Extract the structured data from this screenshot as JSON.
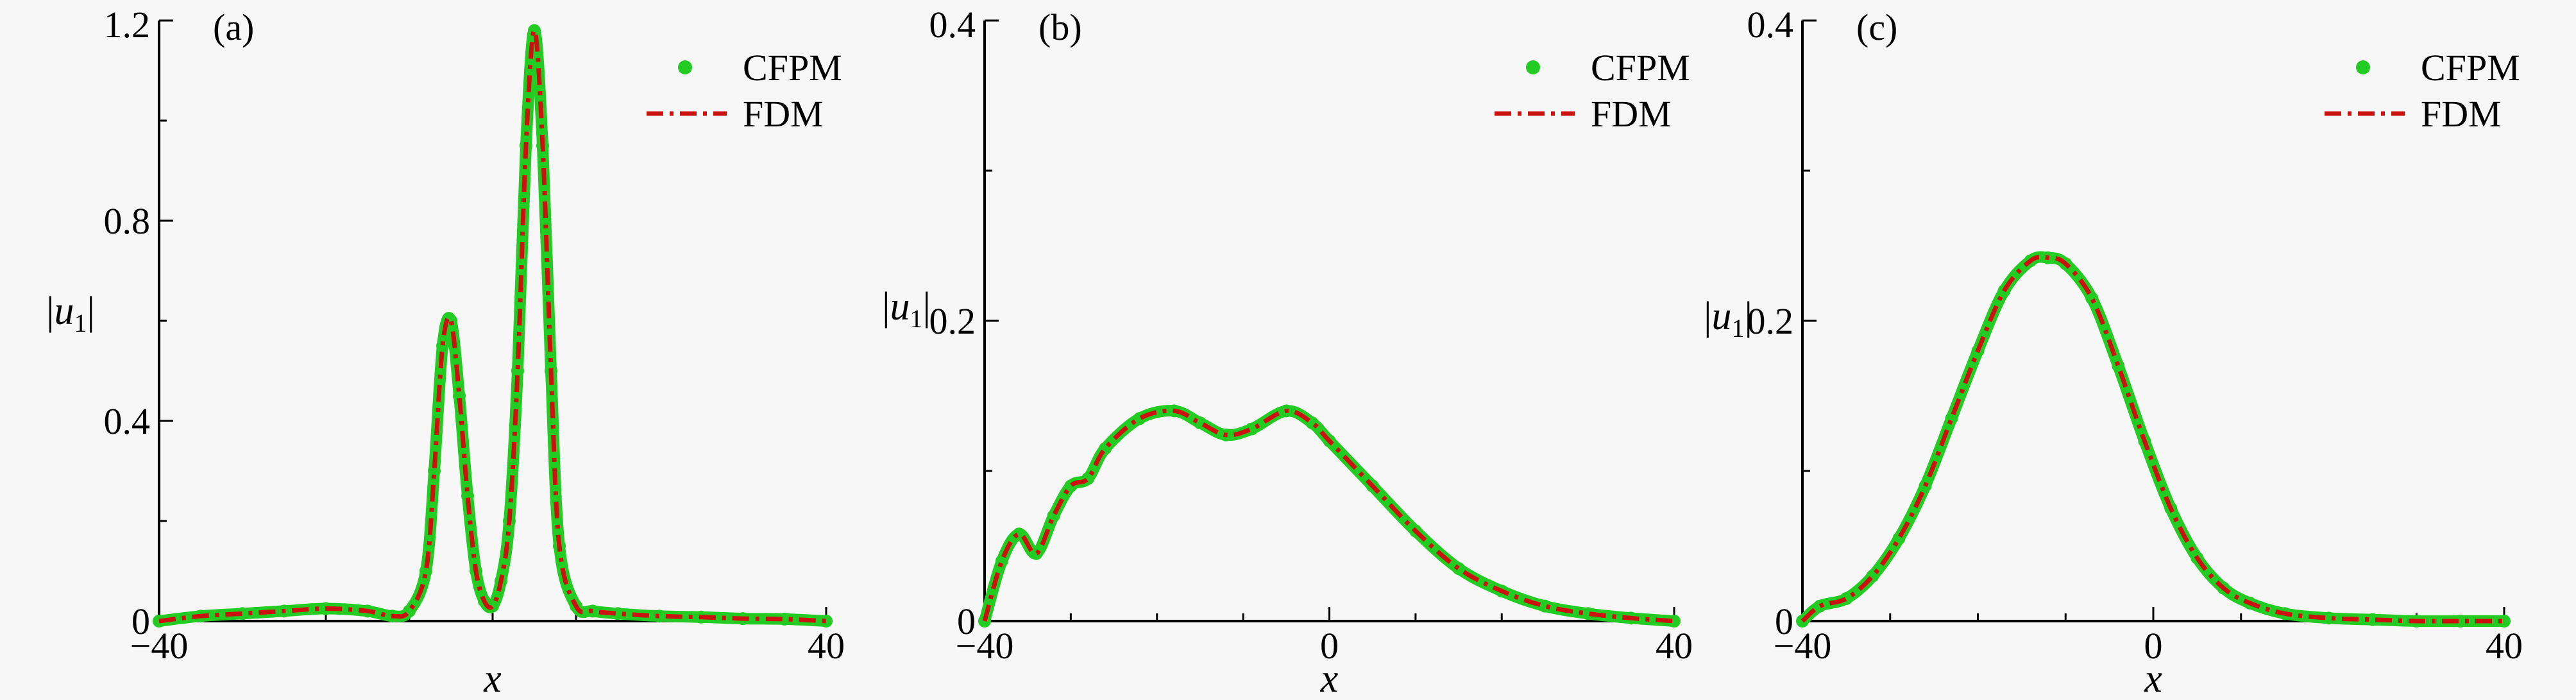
{
  "chart_data": [
    {
      "type": "line",
      "panel_label": "(a)",
      "xlabel": "x",
      "ylabel": "|u1|",
      "xlim": [
        -40,
        40
      ],
      "ylim": [
        0,
        1.2
      ],
      "xticks": [
        -40,
        40
      ],
      "xtick_labels": [
        "−40",
        "40"
      ],
      "yticks": [
        0,
        0.4,
        0.8,
        1.2
      ],
      "ytick_labels": [
        "0",
        "0.4",
        "0.8",
        "1.2"
      ],
      "legend": "top-right",
      "series": [
        {
          "name": "CFPM",
          "style": "markers",
          "color": "#22cc22",
          "x": [
            -40,
            -35,
            -30,
            -25,
            -20,
            -15,
            -12,
            -10,
            -8,
            -7,
            -6,
            -5,
            -4,
            -3,
            -2,
            -1,
            0,
            1,
            2,
            3,
            4,
            5,
            6,
            7,
            8,
            10,
            12,
            15,
            20,
            25,
            30,
            35,
            40
          ],
          "y": [
            0.0,
            0.01,
            0.015,
            0.02,
            0.025,
            0.02,
            0.01,
            0.02,
            0.1,
            0.3,
            0.55,
            0.6,
            0.45,
            0.25,
            0.1,
            0.04,
            0.03,
            0.08,
            0.2,
            0.5,
            0.95,
            1.18,
            0.95,
            0.5,
            0.15,
            0.03,
            0.02,
            0.015,
            0.01,
            0.008,
            0.005,
            0.004,
            0.0
          ]
        },
        {
          "name": "FDM",
          "style": "dashdot",
          "color": "#cc1111",
          "x": [
            -40,
            -35,
            -30,
            -25,
            -20,
            -15,
            -12,
            -10,
            -8,
            -7,
            -6,
            -5,
            -4,
            -3,
            -2,
            -1,
            0,
            1,
            2,
            3,
            4,
            5,
            6,
            7,
            8,
            10,
            12,
            15,
            20,
            25,
            30,
            35,
            40
          ],
          "y": [
            0.0,
            0.01,
            0.015,
            0.02,
            0.025,
            0.02,
            0.01,
            0.02,
            0.1,
            0.3,
            0.55,
            0.6,
            0.45,
            0.25,
            0.1,
            0.04,
            0.03,
            0.08,
            0.2,
            0.5,
            0.95,
            1.18,
            0.95,
            0.5,
            0.15,
            0.03,
            0.02,
            0.015,
            0.01,
            0.008,
            0.005,
            0.004,
            0.0
          ]
        }
      ]
    },
    {
      "type": "line",
      "panel_label": "(b)",
      "xlabel": "x",
      "ylabel": "|u1|",
      "xlim": [
        -40,
        40
      ],
      "ylim": [
        0,
        0.4
      ],
      "xticks": [
        -40,
        0,
        40
      ],
      "xtick_labels": [
        "−40",
        "0",
        "40"
      ],
      "yticks": [
        0,
        0.2,
        0.4
      ],
      "ytick_labels": [
        "0",
        "0.2",
        "0.4"
      ],
      "legend": "top-right",
      "series": [
        {
          "name": "CFPM",
          "style": "markers",
          "color": "#22cc22",
          "x": [
            -40,
            -38,
            -36,
            -34,
            -32,
            -30,
            -28,
            -26,
            -22,
            -18,
            -15,
            -12,
            -9,
            -5,
            -2,
            0,
            5,
            10,
            15,
            20,
            25,
            30,
            35,
            40
          ],
          "y": [
            0.0,
            0.04,
            0.058,
            0.045,
            0.07,
            0.09,
            0.095,
            0.115,
            0.135,
            0.14,
            0.132,
            0.124,
            0.128,
            0.14,
            0.132,
            0.12,
            0.09,
            0.06,
            0.035,
            0.02,
            0.01,
            0.005,
            0.002,
            0.0
          ]
        },
        {
          "name": "FDM",
          "style": "dashdot",
          "color": "#cc1111",
          "x": [
            -40,
            -38,
            -36,
            -34,
            -32,
            -30,
            -28,
            -26,
            -22,
            -18,
            -15,
            -12,
            -9,
            -5,
            -2,
            0,
            5,
            10,
            15,
            20,
            25,
            30,
            35,
            40
          ],
          "y": [
            0.0,
            0.04,
            0.058,
            0.045,
            0.07,
            0.09,
            0.095,
            0.115,
            0.135,
            0.14,
            0.132,
            0.124,
            0.128,
            0.14,
            0.132,
            0.12,
            0.09,
            0.06,
            0.035,
            0.02,
            0.01,
            0.005,
            0.002,
            0.0
          ]
        }
      ]
    },
    {
      "type": "line",
      "panel_label": "(c)",
      "xlabel": "x",
      "ylabel": "|u1|",
      "xlim": [
        -40,
        40
      ],
      "ylim": [
        0,
        0.4
      ],
      "xticks": [
        -40,
        0,
        40
      ],
      "xtick_labels": [
        "−40",
        "0",
        "40"
      ],
      "yticks": [
        0,
        0.2,
        0.4
      ],
      "ytick_labels": [
        "0",
        "0.2",
        "0.4"
      ],
      "legend": "top-right",
      "series": [
        {
          "name": "CFPM",
          "style": "markers",
          "color": "#22cc22",
          "x": [
            -40,
            -38,
            -35,
            -32,
            -29,
            -26,
            -23,
            -20,
            -17,
            -14,
            -12,
            -10,
            -7,
            -4,
            -1,
            2,
            5,
            8,
            11,
            15,
            20,
            25,
            30,
            35,
            40
          ],
          "y": [
            0.0,
            0.01,
            0.015,
            0.03,
            0.055,
            0.09,
            0.135,
            0.18,
            0.22,
            0.24,
            0.242,
            0.238,
            0.215,
            0.17,
            0.12,
            0.075,
            0.042,
            0.022,
            0.012,
            0.005,
            0.002,
            0.001,
            0.0,
            0.0,
            0.0
          ]
        },
        {
          "name": "FDM",
          "style": "dashdot",
          "color": "#cc1111",
          "x": [
            -40,
            -38,
            -35,
            -32,
            -29,
            -26,
            -23,
            -20,
            -17,
            -14,
            -12,
            -10,
            -7,
            -4,
            -1,
            2,
            5,
            8,
            11,
            15,
            20,
            25,
            30,
            35,
            40
          ],
          "y": [
            0.0,
            0.01,
            0.015,
            0.03,
            0.055,
            0.09,
            0.135,
            0.18,
            0.22,
            0.24,
            0.242,
            0.238,
            0.215,
            0.17,
            0.12,
            0.075,
            0.042,
            0.022,
            0.012,
            0.005,
            0.002,
            0.001,
            0.0,
            0.0,
            0.0
          ]
        }
      ]
    }
  ]
}
